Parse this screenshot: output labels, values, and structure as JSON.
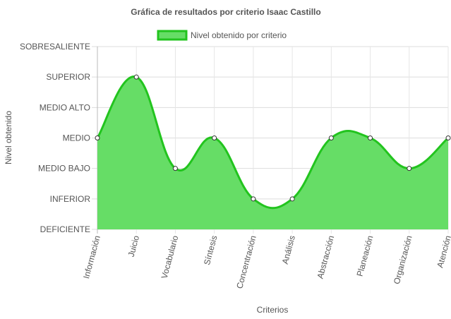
{
  "chart_data": {
    "type": "area",
    "title": "Gráfica de resultados por criterio Isaac Castillo",
    "xlabel": "Criterios",
    "ylabel": "Nivel obtenido",
    "categories": [
      "Información",
      "Juicio",
      "Vocabulario",
      "Síntesis",
      "Concentración",
      "Análisis",
      "Abstracción",
      "Planeación",
      "Organización",
      "Atención"
    ],
    "levels": [
      "DEFICIENTE",
      "INFERIOR",
      "MEDIO BAJO",
      "MEDIO",
      "MEDIO ALTO",
      "SUPERIOR",
      "SOBRESALIENTE"
    ],
    "ylim": [
      0,
      6
    ],
    "grid": true,
    "legend_position": "top",
    "series": [
      {
        "name": "Nivel obtenido por criterio",
        "values": [
          3,
          5,
          2,
          3,
          1,
          1,
          3,
          3,
          2,
          3
        ],
        "color": "#22c41e",
        "fill": "#66dd66"
      }
    ]
  }
}
